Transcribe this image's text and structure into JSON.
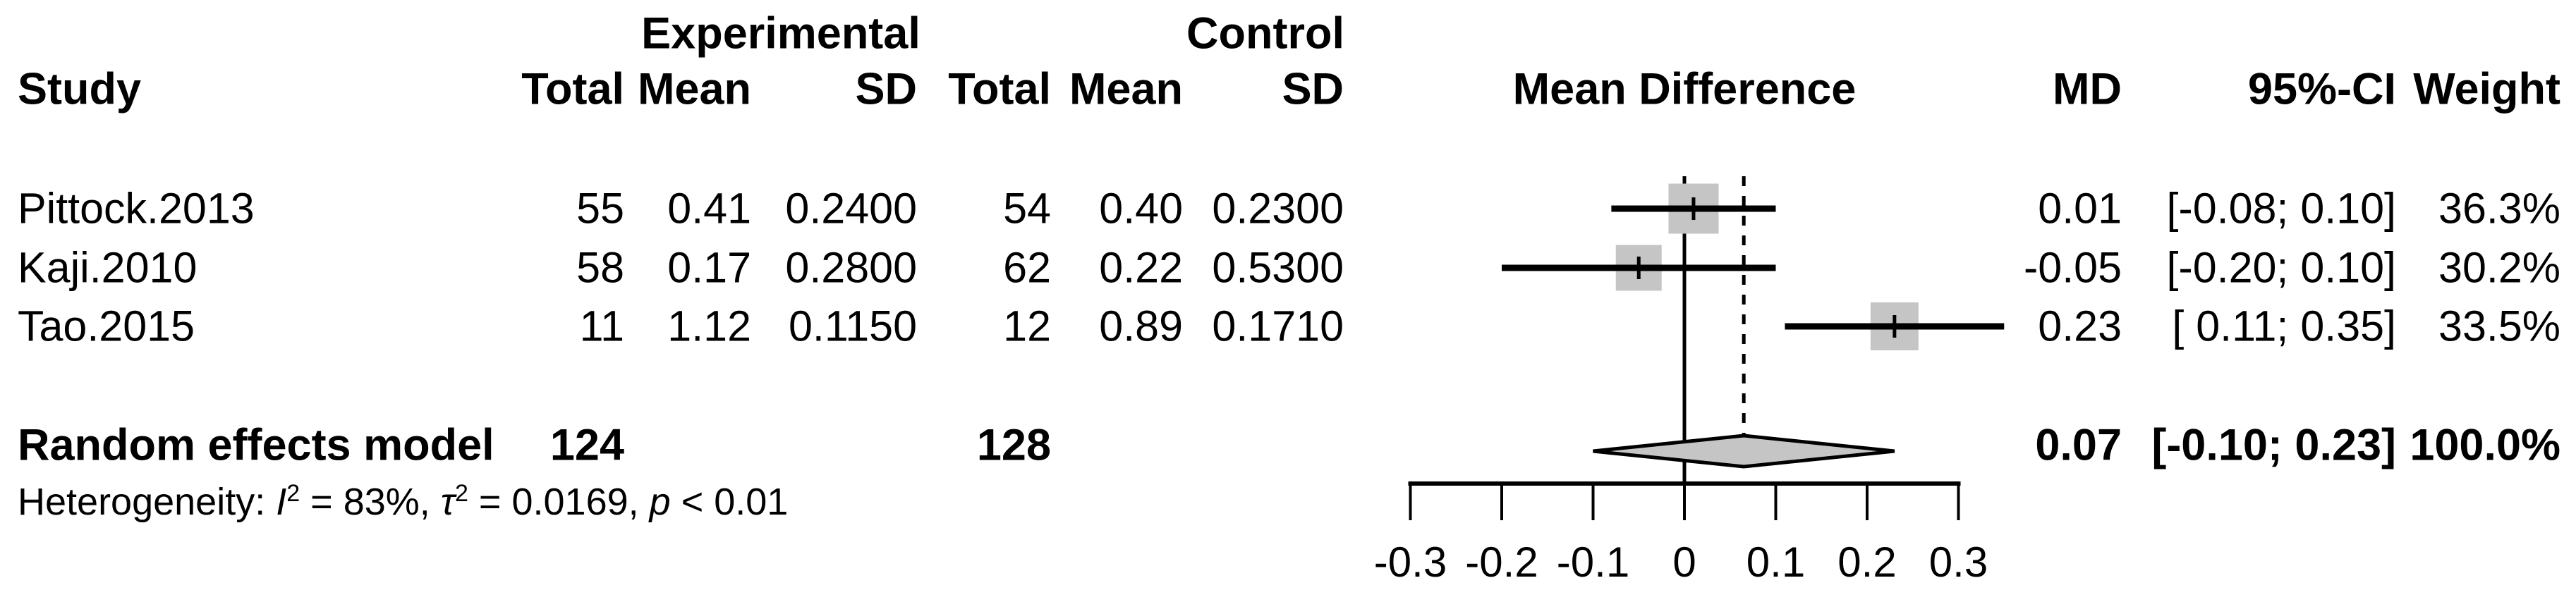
{
  "header": {
    "group_experimental": "Experimental",
    "group_control": "Control",
    "study": "Study",
    "exp_total": "Total",
    "exp_mean": "Mean",
    "exp_sd": "SD",
    "ctrl_total": "Total",
    "ctrl_mean": "Mean",
    "ctrl_sd": "SD",
    "mean_difference": "Mean Difference",
    "md": "MD",
    "ci": "95%-CI",
    "weight": "Weight"
  },
  "table": {
    "rows": [
      {
        "name": "Pittock.2013",
        "exp_total": "55",
        "exp_mean": "0.41",
        "exp_sd": "0.2400",
        "ctrl_total": "54",
        "ctrl_mean": "0.40",
        "ctrl_sd": "0.2300",
        "md": "0.01",
        "ci": "[-0.08; 0.10]",
        "weight": "36.3%"
      },
      {
        "name": "Kaji.2010",
        "exp_total": "58",
        "exp_mean": "0.17",
        "exp_sd": "0.2800",
        "ctrl_total": "62",
        "ctrl_mean": "0.22",
        "ctrl_sd": "0.5300",
        "md": "-0.05",
        "ci": "[-0.20; 0.10]",
        "weight": "30.2%"
      },
      {
        "name": "Tao.2015",
        "exp_total": "11",
        "exp_mean": "1.12",
        "exp_sd": "0.1150",
        "ctrl_total": "12",
        "ctrl_mean": "0.89",
        "ctrl_sd": "0.1710",
        "md": "0.23",
        "ci": "[ 0.11; 0.35]",
        "weight": "33.5%"
      }
    ],
    "summary": {
      "label": "Random effects model",
      "exp_total": "124",
      "ctrl_total": "128",
      "md": "0.07",
      "ci": "[-0.10; 0.23]",
      "weight": "100.0%"
    }
  },
  "heterogeneity": {
    "prefix": "Heterogeneity: ",
    "i_symbol": "I",
    "i_sup": "2",
    "seg1": " = 83%, ",
    "tau_symbol": "τ",
    "tau_sup": "2",
    "seg2": " = 0.0169, ",
    "p_symbol": "p",
    "seg3": " < 0.01"
  },
  "chart_data": {
    "type": "forest",
    "title": "Mean Difference",
    "effect_measure": "MD",
    "x_ticks": [
      -0.3,
      -0.2,
      -0.1,
      0,
      0.1,
      0.2,
      0.3
    ],
    "x_tick_labels": [
      "-0.3",
      "-0.2",
      "-0.1",
      "0",
      "0.1",
      "0.2",
      "0.3"
    ],
    "axis_range": [
      -0.3,
      0.3
    ],
    "zero_line": 0,
    "studies": [
      {
        "name": "Pittock.2013",
        "exp_total": 55,
        "exp_mean": 0.41,
        "exp_sd": 0.24,
        "ctrl_total": 54,
        "ctrl_mean": 0.4,
        "ctrl_sd": 0.23,
        "md": 0.01,
        "ci_low": -0.08,
        "ci_high": 0.1,
        "weight_pct": 36.3
      },
      {
        "name": "Kaji.2010",
        "exp_total": 58,
        "exp_mean": 0.17,
        "exp_sd": 0.28,
        "ctrl_total": 62,
        "ctrl_mean": 0.22,
        "ctrl_sd": 0.53,
        "md": -0.05,
        "ci_low": -0.2,
        "ci_high": 0.1,
        "weight_pct": 30.2
      },
      {
        "name": "Tao.2015",
        "exp_total": 11,
        "exp_mean": 1.12,
        "exp_sd": 0.115,
        "ctrl_total": 12,
        "ctrl_mean": 0.89,
        "ctrl_sd": 0.171,
        "md": 0.23,
        "ci_low": 0.11,
        "ci_high": 0.35,
        "weight_pct": 33.5
      }
    ],
    "pooled": {
      "model": "Random effects model",
      "exp_total": 124,
      "ctrl_total": 128,
      "md": 0.07,
      "ci_low": -0.1,
      "ci_high": 0.23,
      "weight_pct": 100.0
    },
    "heterogeneity": {
      "i2": "83%",
      "tau2": "0.0169",
      "p": "< 0.01"
    },
    "colors": {
      "square": "#c5c5c5",
      "diamond_fill": "#c5c5c5",
      "line": "#000000"
    },
    "legend_position": "none",
    "grid": false
  }
}
